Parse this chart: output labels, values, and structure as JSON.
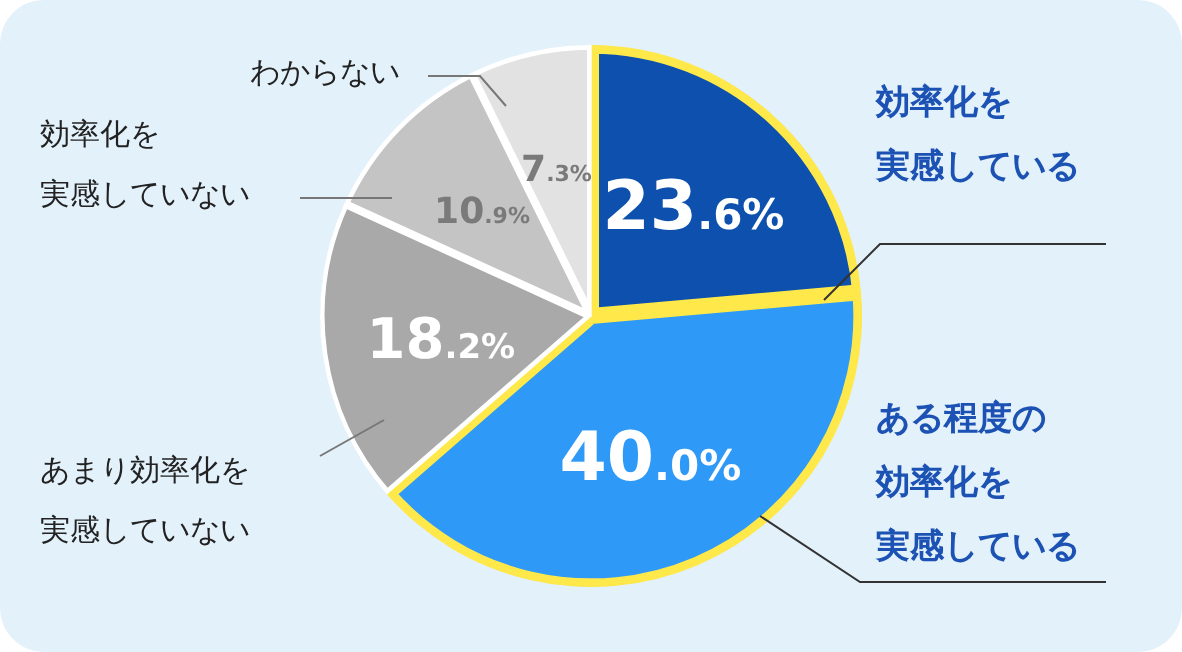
{
  "chart_data": {
    "type": "pie",
    "categories": [
      "効率化を実感している",
      "ある程度の効率化を実感している",
      "あまり効率化を実感していない",
      "効率化を実感していない",
      "わからない"
    ],
    "values": [
      23.6,
      40.0,
      18.2,
      10.9,
      7.3
    ],
    "colors": [
      "#0d50ad",
      "#2e99f7",
      "#a9a9a9",
      "#c4c4c4",
      "#e2e2e2"
    ],
    "value_labels": [
      "23.6%",
      "40.0%",
      "18.2%",
      "10.9%",
      "7.3%"
    ],
    "legend": false
  }
}
